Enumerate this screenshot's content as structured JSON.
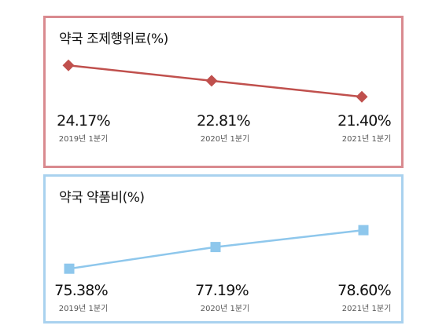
{
  "chart_data": [
    {
      "type": "line",
      "title": "약국 조제행위료(%)",
      "categories": [
        "2019년 1분기",
        "2020년 1분기",
        "2021년 1분기"
      ],
      "values": [
        24.17,
        22.81,
        21.4
      ],
      "value_labels": [
        "24.17%",
        "22.81%",
        "21.40%"
      ],
      "color": "#c0504d",
      "marker": "diamond",
      "grid": false
    },
    {
      "type": "line",
      "title": "약국 약품비(%)",
      "categories": [
        "2019년 1분기",
        "2020년 1분기",
        "2021년 1분기"
      ],
      "values": [
        75.38,
        77.19,
        78.6
      ],
      "value_labels": [
        "75.38%",
        "77.19%",
        "78.60%"
      ],
      "color": "#8ec7ec",
      "marker": "square",
      "grid": false
    }
  ]
}
